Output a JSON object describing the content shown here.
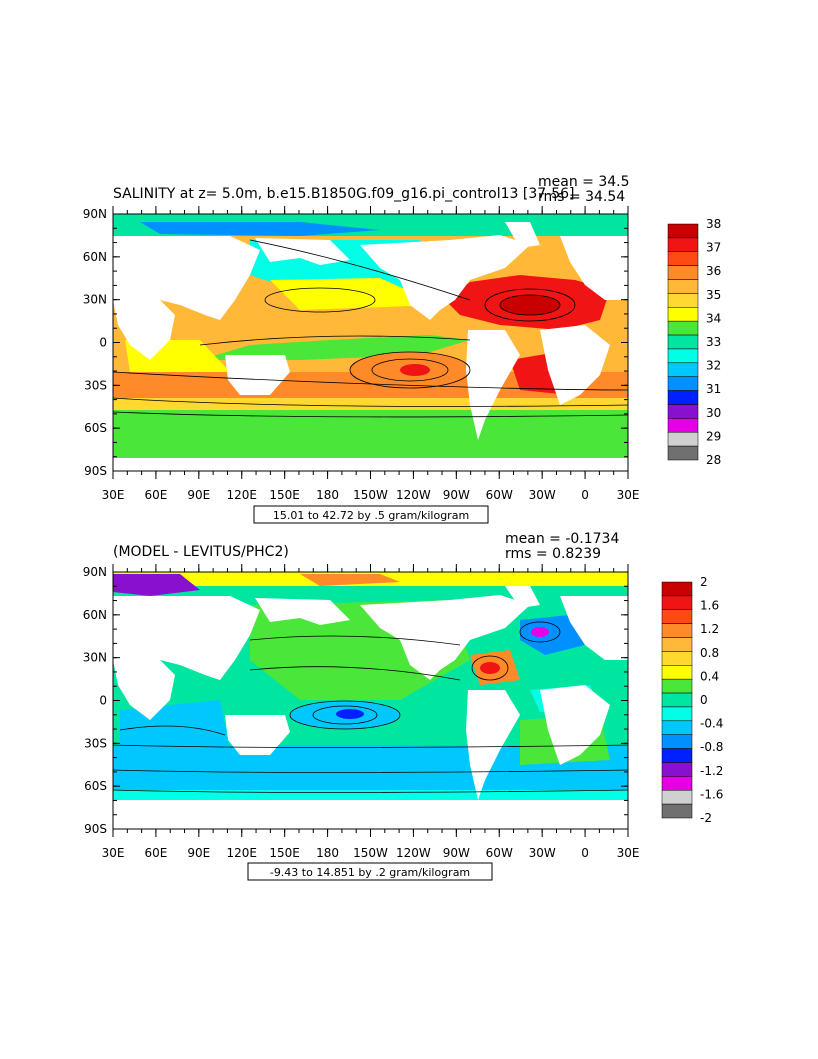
{
  "panels": [
    {
      "title": "SALINITY at z=     5.0m, b.e15.B1850G.f09_g16.pi_control13 [37-56]",
      "mean_text": "mean = 34.5",
      "rms_text": "rms = 34.54",
      "range_note": "15.01 to 42.72 by .5 gram/kilogram",
      "lat_labels": [
        "90N",
        "60N",
        "30N",
        "0",
        "30S",
        "60S",
        "90S"
      ],
      "lon_labels": [
        "30E",
        "60E",
        "90E",
        "120E",
        "150E",
        "180",
        "150W",
        "120W",
        "90W",
        "60W",
        "30W",
        "0",
        "30E"
      ],
      "colorbar_labels": [
        "38",
        "37",
        "36",
        "35",
        "34",
        "33",
        "32",
        "31",
        "30",
        "29",
        "28"
      ],
      "colorbar_colors": [
        "#c80000",
        "#f01414",
        "#ff4a14",
        "#ff8a2a",
        "#ffb838",
        "#ffd930",
        "#ffff00",
        "#4ae63a",
        "#00e6a0",
        "#00ffe6",
        "#00c8ff",
        "#0090ff",
        "#0020ff",
        "#8a10d0",
        "#e600e6",
        "#d0d0d0",
        "#707070"
      ]
    },
    {
      "title": "(MODEL - LEVITUS/PHC2)",
      "mean_text": "mean = -0.1734",
      "rms_text": "rms = 0.8239",
      "range_note": "-9.43 to 14.851 by .2 gram/kilogram",
      "lat_labels": [
        "90N",
        "60N",
        "30N",
        "0",
        "30S",
        "60S",
        "90S"
      ],
      "lon_labels": [
        "30E",
        "60E",
        "90E",
        "120E",
        "150E",
        "180",
        "150W",
        "120W",
        "90W",
        "60W",
        "30W",
        "0",
        "30E"
      ],
      "colorbar_labels": [
        "2",
        "1.6",
        "1.2",
        "0.8",
        "0.4",
        "0",
        "-0.4",
        "-0.8",
        "-1.2",
        "-1.6",
        "-2"
      ],
      "colorbar_colors": [
        "#c80000",
        "#f01414",
        "#ff4a14",
        "#ff8a2a",
        "#ffb838",
        "#ffd930",
        "#ffff00",
        "#4ae63a",
        "#00e6a0",
        "#00ffe6",
        "#00c8ff",
        "#0090ff",
        "#0020ff",
        "#8a10d0",
        "#e600e6",
        "#d0d0d0",
        "#707070"
      ]
    }
  ]
}
